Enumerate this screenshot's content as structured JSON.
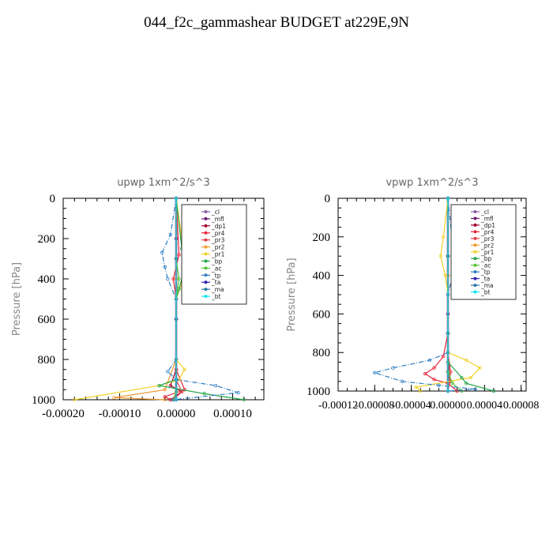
{
  "title": "044_f2c_gammashear  BUDGET at229E,9N",
  "legend_labels": [
    "_cl",
    "_mfl",
    "_dp1",
    "_pr4",
    "_pr3",
    "_pr2",
    "_pr1",
    "_bp",
    "_ac",
    "_tp",
    "_ta",
    "_ma",
    "_bt"
  ],
  "series_colors": {
    "_cl": "#8a5fa8",
    "_mfl": "#6a1c78",
    "_dp1": "#a00030",
    "_pr4": "#e8283c",
    "_pr3": "#e0404c",
    "_pr2": "#f09a30",
    "_pr1": "#f2d22a",
    "_bp": "#26a64a",
    "_ac": "#55c43a",
    "_tp": "#2f7fc4",
    "_ta": "#3020b0",
    "_ma": "#2a78a8",
    "_bt": "#16e8f0"
  },
  "chart_data": [
    {
      "type": "line",
      "title": "upwp  1xm^2/s^3",
      "ylabel": "Pressure [hPa]",
      "ylim": [
        1000,
        0
      ],
      "xlim": [
        -0.0002,
        0.00015
      ],
      "y_ticks": [
        "0",
        "200",
        "400",
        "600",
        "800",
        "1000"
      ],
      "x_ticks": [
        "-0.00020",
        "-0.00010",
        "0.00000",
        "0.00010"
      ],
      "legend_placement": "top-right",
      "series": [
        {
          "name": "_cl",
          "points": [
            [
              0,
              0
            ],
            [
              0,
              200
            ],
            [
              0,
              400
            ],
            [
              0,
              600
            ],
            [
              0,
              800
            ],
            [
              0,
              1000
            ]
          ]
        },
        {
          "name": "_mfl",
          "points": [
            [
              0,
              0
            ],
            [
              0,
              200
            ],
            [
              0,
              400
            ],
            [
              0,
              600
            ],
            [
              0,
              800
            ],
            [
              0,
              1000
            ]
          ]
        },
        {
          "name": "_dp1",
          "points": [
            [
              0,
              0
            ],
            [
              0,
              300
            ],
            [
              0,
              600
            ],
            [
              0,
              850
            ],
            [
              -1e-05,
              930
            ],
            [
              1e-05,
              960
            ],
            [
              -1e-05,
              1000
            ]
          ]
        },
        {
          "name": "_pr4",
          "points": [
            [
              0,
              0
            ],
            [
              5e-06,
              280
            ],
            [
              -5e-06,
              400
            ],
            [
              0,
              500
            ],
            [
              0,
              850
            ],
            [
              1.5e-05,
              950
            ],
            [
              -2e-05,
              985
            ],
            [
              -1e-05,
              1000
            ]
          ]
        },
        {
          "name": "_pr3",
          "points": [
            [
              0,
              0
            ],
            [
              0,
              300
            ],
            [
              0,
              600
            ],
            [
              0,
              900
            ],
            [
              1e-05,
              960
            ],
            [
              -5e-06,
              1000
            ]
          ]
        },
        {
          "name": "_pr2",
          "points": [
            [
              0,
              0
            ],
            [
              0,
              400
            ],
            [
              0,
              800
            ],
            [
              -2e-05,
              950
            ],
            [
              -0.00011,
              990
            ],
            [
              -2e-05,
              1000
            ]
          ]
        },
        {
          "name": "_pr1",
          "points": [
            [
              0,
              0
            ],
            [
              1e-05,
              200
            ],
            [
              2e-05,
              300
            ],
            [
              1e-05,
              420
            ],
            [
              0,
              500
            ],
            [
              0,
              800
            ],
            [
              1.5e-05,
              850
            ],
            [
              5e-06,
              900
            ],
            [
              -3e-05,
              930
            ],
            [
              -0.00018,
              1000
            ]
          ]
        },
        {
          "name": "_bp",
          "points": [
            [
              0,
              0
            ],
            [
              1e-05,
              250
            ],
            [
              1.5e-05,
              350
            ],
            [
              5e-06,
              450
            ],
            [
              0,
              500
            ],
            [
              0,
              900
            ],
            [
              -3e-05,
              930
            ],
            [
              5e-05,
              970
            ],
            [
              0.00012,
              1000
            ]
          ]
        },
        {
          "name": "_ac",
          "points": [
            [
              0,
              0
            ],
            [
              0,
              300
            ],
            [
              5e-06,
              400
            ],
            [
              0,
              500
            ],
            [
              0,
              900
            ],
            [
              0,
              960
            ],
            [
              -5e-06,
              1000
            ]
          ]
        },
        {
          "name": "_tp",
          "points": [
            [
              0,
              0
            ],
            [
              -1e-05,
              180
            ],
            [
              -2.5e-05,
              270
            ],
            [
              -2e-05,
              340
            ],
            [
              -1.5e-05,
              400
            ],
            [
              0,
              500
            ],
            [
              0,
              800
            ],
            [
              -1.5e-05,
              860
            ],
            [
              0,
              900
            ],
            [
              7e-05,
              930
            ],
            [
              0.00011,
              965
            ],
            [
              -5e-06,
              1000
            ]
          ]
        },
        {
          "name": "_ta",
          "points": [
            [
              0,
              0
            ],
            [
              0,
              300
            ],
            [
              0,
              600
            ],
            [
              0,
              900
            ],
            [
              0,
              1000
            ]
          ]
        },
        {
          "name": "_ma",
          "points": [
            [
              0,
              0
            ],
            [
              0,
              300
            ],
            [
              0,
              600
            ],
            [
              0,
              900
            ],
            [
              0,
              1000
            ]
          ]
        },
        {
          "name": "_bt",
          "points": [
            [
              0,
              0
            ],
            [
              0,
              1000
            ]
          ]
        }
      ]
    },
    {
      "type": "line",
      "title": "vpwp  1xm^2/s^3",
      "ylabel": "Pressure [hPa]",
      "ylim": [
        1000,
        0
      ],
      "xlim": [
        -0.00012,
        8e-05
      ],
      "y_ticks": [
        "0",
        "200",
        "400",
        "600",
        "800",
        "1000"
      ],
      "x_ticks": [
        "-0.00012",
        "-0.00008",
        "-0.00004",
        "0.00000",
        "0.00004",
        "0.00008"
      ],
      "legend_placement": "top-right",
      "series": [
        {
          "name": "_cl",
          "points": [
            [
              0,
              0
            ],
            [
              0,
              300
            ],
            [
              0,
              600
            ],
            [
              0,
              900
            ],
            [
              0,
              1000
            ]
          ]
        },
        {
          "name": "_mfl",
          "points": [
            [
              0,
              0
            ],
            [
              0,
              300
            ],
            [
              0,
              600
            ],
            [
              0,
              900
            ],
            [
              0,
              1000
            ]
          ]
        },
        {
          "name": "_dp1",
          "points": [
            [
              0,
              0
            ],
            [
              0,
              400
            ],
            [
              0,
              800
            ],
            [
              2e-06,
              950
            ],
            [
              0,
              1000
            ]
          ]
        },
        {
          "name": "_pr4",
          "points": [
            [
              0,
              0
            ],
            [
              0,
              300
            ],
            [
              0,
              700
            ],
            [
              -5e-06,
              820
            ],
            [
              -1.5e-05,
              880
            ],
            [
              -2.5e-05,
              910
            ],
            [
              -1.5e-05,
              940
            ],
            [
              0,
              960
            ],
            [
              1e-05,
              1000
            ]
          ]
        },
        {
          "name": "_pr3",
          "points": [
            [
              0,
              0
            ],
            [
              0,
              400
            ],
            [
              0,
              800
            ],
            [
              3e-06,
              900
            ],
            [
              0,
              1000
            ]
          ]
        },
        {
          "name": "_pr2",
          "points": [
            [
              0,
              0
            ],
            [
              0,
              400
            ],
            [
              0,
              800
            ],
            [
              0,
              900
            ],
            [
              0,
              1000
            ]
          ]
        },
        {
          "name": "_pr1",
          "points": [
            [
              0,
              0
            ],
            [
              -5e-06,
              200
            ],
            [
              -8e-06,
              300
            ],
            [
              -3e-06,
              400
            ],
            [
              0,
              500
            ],
            [
              0,
              800
            ],
            [
              2e-05,
              840
            ],
            [
              3.5e-05,
              880
            ],
            [
              2.5e-05,
              930
            ],
            [
              -3.5e-05,
              980
            ],
            [
              -3e-05,
              1000
            ]
          ]
        },
        {
          "name": "_bp",
          "points": [
            [
              0,
              0
            ],
            [
              0,
              300
            ],
            [
              0,
              700
            ],
            [
              0,
              850
            ],
            [
              1.5e-05,
              930
            ],
            [
              2e-05,
              960
            ],
            [
              5e-05,
              1000
            ]
          ]
        },
        {
          "name": "_ac",
          "points": [
            [
              0,
              0
            ],
            [
              0,
              300
            ],
            [
              0,
              700
            ],
            [
              0,
              900
            ],
            [
              5e-06,
              960
            ],
            [
              1.5e-05,
              1000
            ]
          ]
        },
        {
          "name": "_tp",
          "points": [
            [
              0,
              0
            ],
            [
              5e-06,
              230
            ],
            [
              1e-05,
              320
            ],
            [
              5e-06,
              400
            ],
            [
              0,
              500
            ],
            [
              0,
              800
            ],
            [
              -2e-05,
              840
            ],
            [
              -6e-05,
              880
            ],
            [
              -8e-05,
              905
            ],
            [
              -5e-05,
              950
            ],
            [
              -1e-05,
              970
            ],
            [
              3e-05,
              990
            ],
            [
              0,
              1000
            ]
          ]
        },
        {
          "name": "_ta",
          "points": [
            [
              0,
              0
            ],
            [
              0,
              300
            ],
            [
              0,
              700
            ],
            [
              0,
              1000
            ]
          ]
        },
        {
          "name": "_ma",
          "points": [
            [
              0,
              0
            ],
            [
              0,
              300
            ],
            [
              0,
              700
            ],
            [
              0,
              1000
            ]
          ]
        },
        {
          "name": "_bt",
          "points": [
            [
              0,
              0
            ],
            [
              0,
              1000
            ]
          ]
        }
      ]
    }
  ]
}
